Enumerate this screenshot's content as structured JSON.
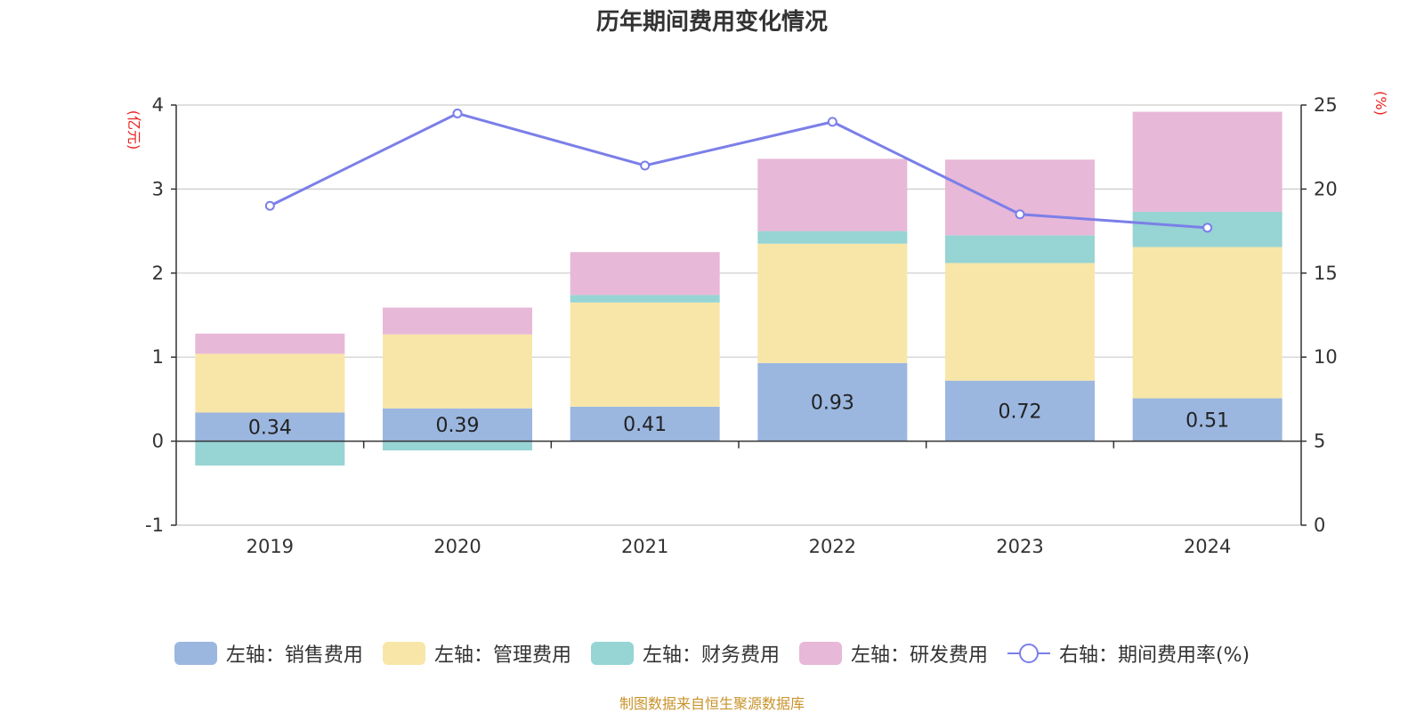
{
  "chart_data": {
    "type": "bar",
    "title": "历年期间费用变化情况",
    "categories": [
      "2019",
      "2020",
      "2021",
      "2022",
      "2023",
      "2024"
    ],
    "stacked": true,
    "left_axis": {
      "unit_label": "(亿元)",
      "ylim": [
        -1,
        4
      ],
      "ticks": [
        "-1",
        "0",
        "1",
        "2",
        "3",
        "4"
      ]
    },
    "right_axis": {
      "unit_label": "(%)",
      "ylim": [
        0,
        25
      ],
      "ticks": [
        "0",
        "5",
        "10",
        "15",
        "20",
        "25"
      ]
    },
    "series": [
      {
        "name": "左轴：销售费用",
        "axis": "left",
        "color": "#9bb7e0",
        "values": [
          0.34,
          0.39,
          0.41,
          0.93,
          0.72,
          0.51
        ],
        "labels": [
          "0.34",
          "0.39",
          "0.41",
          "0.93",
          "0.72",
          "0.51"
        ]
      },
      {
        "name": "左轴：管理费用",
        "axis": "left",
        "color": "#f8e6a8",
        "values": [
          0.7,
          0.88,
          1.24,
          1.42,
          1.4,
          1.8
        ]
      },
      {
        "name": "左轴：财务费用",
        "axis": "left",
        "color": "#97d4d4",
        "values": [
          -0.29,
          -0.11,
          0.09,
          0.15,
          0.33,
          0.42
        ]
      },
      {
        "name": "左轴：研发费用",
        "axis": "left",
        "color": "#e8b8d8",
        "values": [
          0.24,
          0.32,
          0.51,
          0.86,
          0.9,
          1.19
        ]
      },
      {
        "name": "右轴：期间费用率(%)",
        "axis": "right",
        "type": "line",
        "color": "#7b7fe8",
        "values": [
          19.0,
          24.5,
          21.4,
          24.0,
          18.5,
          17.7
        ]
      }
    ],
    "grid": true,
    "legend_position": "bottom"
  },
  "source_note": "制图数据来自恒生聚源数据库"
}
